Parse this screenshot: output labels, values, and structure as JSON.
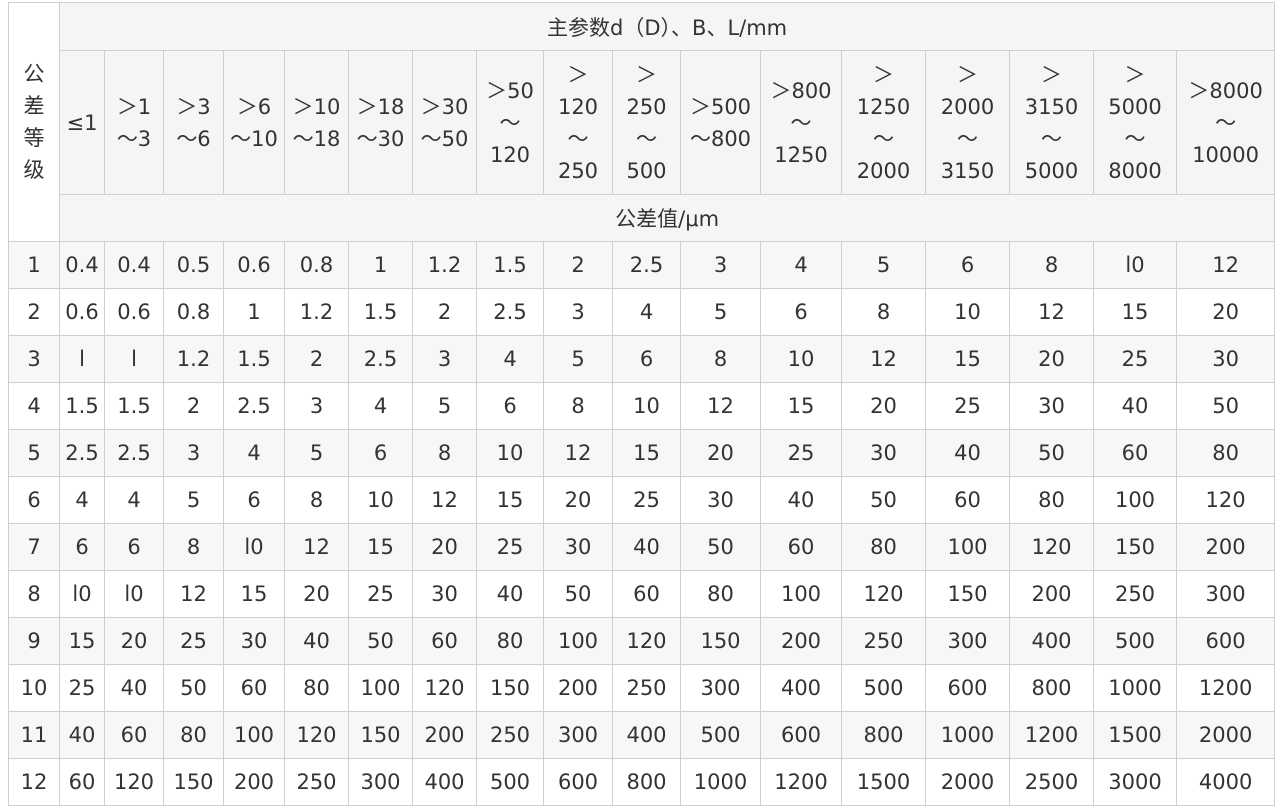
{
  "table": {
    "grade_header": "公\n差\n等\n级",
    "param_header": "主参数d（D）、B、L/mm",
    "value_header": "公差值/μm",
    "ranges": [
      "≤1",
      "＞1\n～3",
      "＞3\n～6",
      "＞6\n～10",
      "＞10\n～18",
      "＞18\n～30",
      "＞30\n～50",
      "＞50\n～\n120",
      "＞\n120\n～\n250",
      "＞\n250\n～\n500",
      "＞500\n～800",
      "＞800\n～\n1250",
      "＞\n1250\n～\n2000",
      "＞\n2000\n～\n3150",
      "＞\n3150\n～\n5000",
      "＞\n5000\n～\n8000",
      "＞8000\n～\n10000"
    ],
    "rows": [
      {
        "grade": "1",
        "values": [
          "0.4",
          "0.4",
          "0.5",
          "0.6",
          "0.8",
          "1",
          "1.2",
          "1.5",
          "2",
          "2.5",
          "3",
          "4",
          "5",
          "6",
          "8",
          "l0",
          "12"
        ]
      },
      {
        "grade": "2",
        "values": [
          "0.6",
          "0.6",
          "0.8",
          "1",
          "1.2",
          "1.5",
          "2",
          "2.5",
          "3",
          "4",
          "5",
          "6",
          "8",
          "10",
          "12",
          "15",
          "20"
        ]
      },
      {
        "grade": "3",
        "values": [
          "l",
          "l",
          "1.2",
          "1.5",
          "2",
          "2.5",
          "3",
          "4",
          "5",
          "6",
          "8",
          "10",
          "12",
          "15",
          "20",
          "25",
          "30"
        ]
      },
      {
        "grade": "4",
        "values": [
          "1.5",
          "1.5",
          "2",
          "2.5",
          "3",
          "4",
          "5",
          "6",
          "8",
          "10",
          "12",
          "15",
          "20",
          "25",
          "30",
          "40",
          "50"
        ]
      },
      {
        "grade": "5",
        "values": [
          "2.5",
          "2.5",
          "3",
          "4",
          "5",
          "6",
          "8",
          "10",
          "12",
          "15",
          "20",
          "25",
          "30",
          "40",
          "50",
          "60",
          "80"
        ]
      },
      {
        "grade": "6",
        "values": [
          "4",
          "4",
          "5",
          "6",
          "8",
          "10",
          "12",
          "15",
          "20",
          "25",
          "30",
          "40",
          "50",
          "60",
          "80",
          "100",
          "120"
        ]
      },
      {
        "grade": "7",
        "values": [
          "6",
          "6",
          "8",
          "l0",
          "12",
          "15",
          "20",
          "25",
          "30",
          "40",
          "50",
          "60",
          "80",
          "100",
          "120",
          "150",
          "200"
        ]
      },
      {
        "grade": "8",
        "values": [
          "l0",
          "l0",
          "12",
          "15",
          "20",
          "25",
          "30",
          "40",
          "50",
          "60",
          "80",
          "100",
          "120",
          "150",
          "200",
          "250",
          "300"
        ]
      },
      {
        "grade": "9",
        "values": [
          "15",
          "20",
          "25",
          "30",
          "40",
          "50",
          "60",
          "80",
          "100",
          "120",
          "150",
          "200",
          "250",
          "300",
          "400",
          "500",
          "600"
        ]
      },
      {
        "grade": "10",
        "values": [
          "25",
          "40",
          "50",
          "60",
          "80",
          "100",
          "120",
          "150",
          "200",
          "250",
          "300",
          "400",
          "500",
          "600",
          "800",
          "1000",
          "1200"
        ]
      },
      {
        "grade": "11",
        "values": [
          "40",
          "60",
          "80",
          "100",
          "120",
          "150",
          "200",
          "250",
          "300",
          "400",
          "500",
          "600",
          "800",
          "1000",
          "1200",
          "1500",
          "2000"
        ]
      },
      {
        "grade": "12",
        "values": [
          "60",
          "120",
          "150",
          "200",
          "250",
          "300",
          "400",
          "500",
          "600",
          "800",
          "1000",
          "1200",
          "1500",
          "2000",
          "2500",
          "3000",
          "4000"
        ]
      }
    ]
  }
}
